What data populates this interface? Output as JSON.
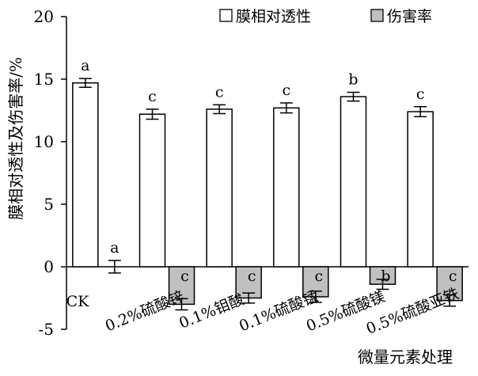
{
  "chart_data": {
    "type": "bar",
    "xlabel": "微量元素处理",
    "ylabel": "膜相对透性及伤害率/%",
    "ylim": [
      -5,
      20
    ],
    "yticks": [
      -5,
      0,
      5,
      10,
      15,
      20
    ],
    "grid": false,
    "legend_position": "top-right",
    "categories": [
      "CK",
      "0.2%硫酸锌",
      "0.1%钼酸",
      "0.1%硫酸锰",
      "0.5%硫酸镁",
      "0.5%硫酸亚铁"
    ],
    "series": [
      {
        "name": "膜相对透性",
        "color": "#ffffff",
        "values": [
          14.7,
          12.2,
          12.6,
          12.7,
          13.6,
          12.4
        ],
        "errors": [
          0.35,
          0.4,
          0.35,
          0.4,
          0.35,
          0.4
        ],
        "significance": [
          "a",
          "c",
          "c",
          "c",
          "b",
          "c"
        ]
      },
      {
        "name": "伤害率",
        "color": "#c0c0c0",
        "values": [
          0,
          -3.0,
          -2.5,
          -2.4,
          -1.4,
          -2.7
        ],
        "errors": [
          0.5,
          0.45,
          0.4,
          0.45,
          0.4,
          0.45
        ],
        "significance": [
          "a",
          "c",
          "c",
          "c",
          "b",
          "c"
        ]
      }
    ]
  }
}
